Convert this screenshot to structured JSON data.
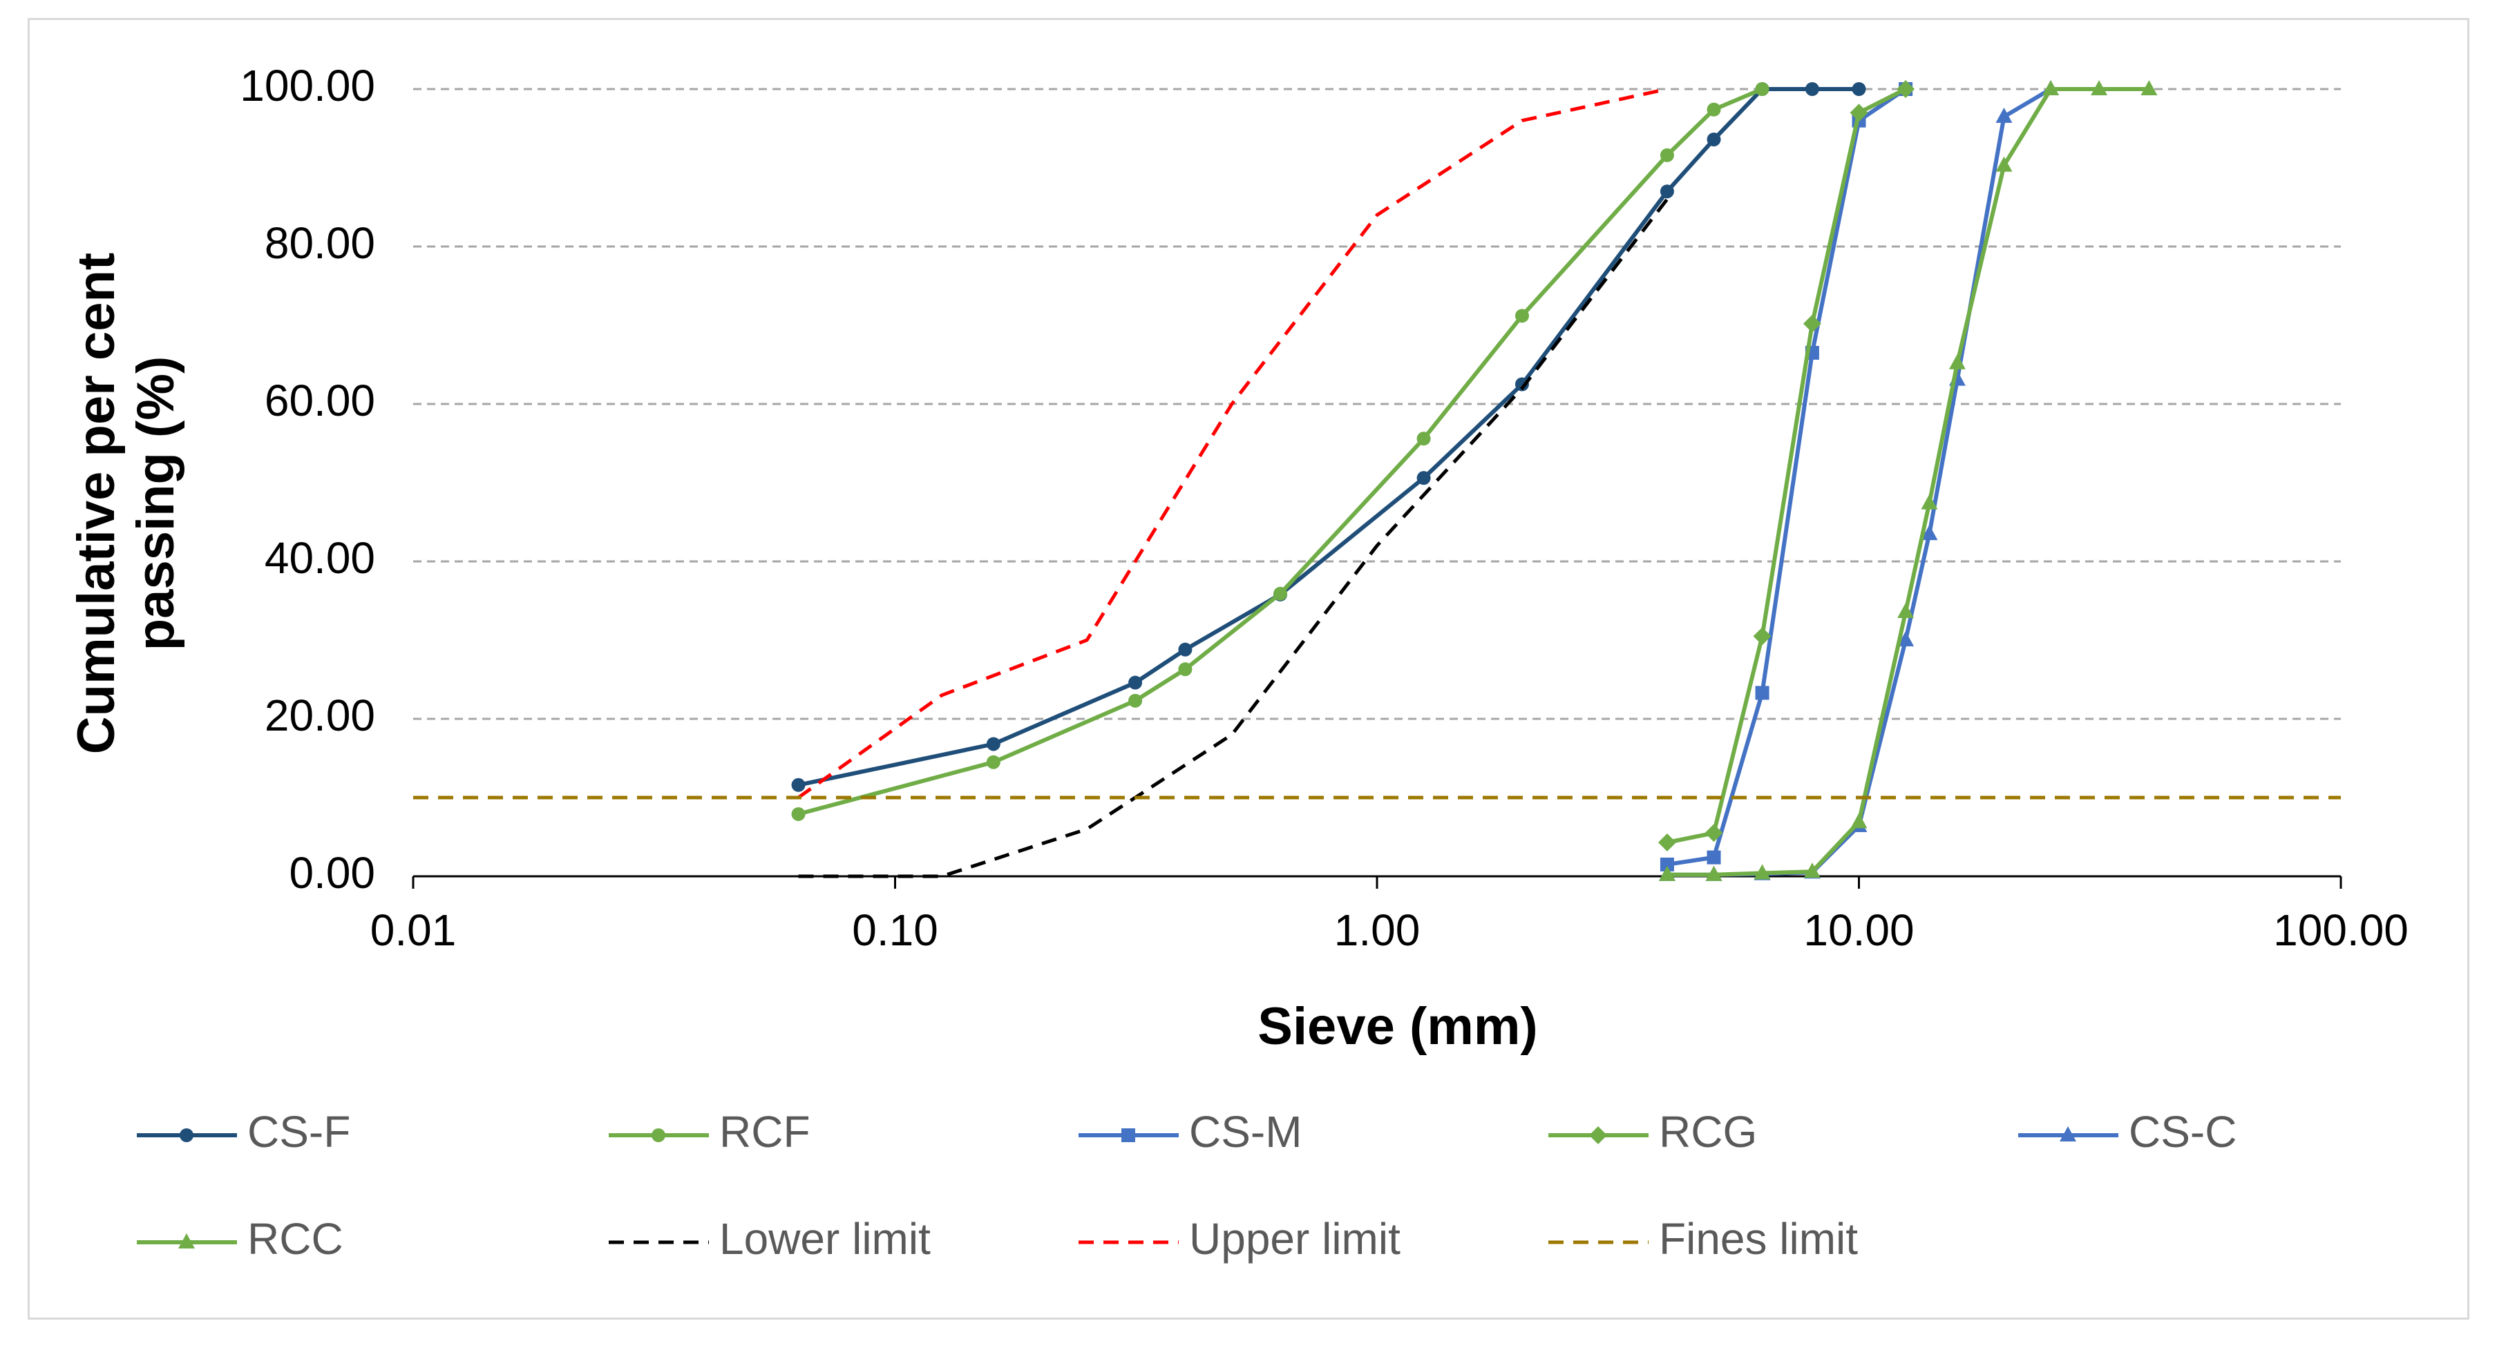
{
  "chart_data": {
    "type": "line",
    "title": "",
    "xlabel": "Sieve (mm)",
    "ylabel_lines": [
      "Cumulative per cent",
      "passing (%)"
    ],
    "x_scale": "log",
    "xlim": [
      0.01,
      100
    ],
    "ylim": [
      0,
      100
    ],
    "x_ticks": [
      0.01,
      0.1,
      1,
      10,
      100
    ],
    "x_tick_labels": [
      "0.01",
      "0.10",
      "1.00",
      "10.00",
      "100.00"
    ],
    "y_ticks": [
      0,
      20,
      40,
      60,
      80,
      100
    ],
    "y_tick_labels": [
      "0.00",
      "20.00",
      "40.00",
      "60.00",
      "80.00",
      "100.00"
    ],
    "grid": "horizontal dashed",
    "legend_position": "bottom",
    "series": [
      {
        "name": "CS-F",
        "color": "#1f4e79",
        "marker": "circle",
        "dash": "solid",
        "x": [
          0.063,
          0.16,
          0.315,
          0.4,
          0.63,
          1.25,
          2.0,
          4.0,
          5.0,
          6.3,
          8.0,
          10.0
        ],
        "y": [
          11.6,
          16.8,
          24.6,
          28.8,
          35.8,
          50.6,
          62.5,
          87.0,
          93.6,
          100.0,
          100.0,
          100.0
        ]
      },
      {
        "name": "RCF",
        "color": "#70ad47",
        "marker": "circle",
        "dash": "solid",
        "x": [
          0.063,
          0.16,
          0.315,
          0.4,
          0.63,
          1.25,
          2.0,
          4.0,
          5.0,
          6.3
        ],
        "y": [
          7.9,
          14.5,
          22.3,
          26.3,
          35.9,
          55.6,
          71.2,
          91.6,
          97.4,
          100.0
        ]
      },
      {
        "name": "CS-M",
        "color": "#4472c4",
        "marker": "square",
        "dash": "solid",
        "x": [
          4.0,
          5.0,
          6.3,
          8.0,
          10.0,
          12.5
        ],
        "y": [
          1.5,
          2.4,
          23.3,
          66.5,
          96.0,
          100.0
        ]
      },
      {
        "name": "RCG",
        "color": "#70ad47",
        "marker": "diamond",
        "dash": "solid",
        "x": [
          4.0,
          5.0,
          6.3,
          8.0,
          10.0,
          12.5
        ],
        "y": [
          4.3,
          5.5,
          30.5,
          70.2,
          97.0,
          100.0
        ]
      },
      {
        "name": "CS-C",
        "color": "#4472c4",
        "marker": "triangle",
        "dash": "solid",
        "x": [
          4.0,
          5.0,
          6.3,
          8.0,
          10.0,
          12.5,
          14.0,
          16.0,
          20.0,
          25.0
        ],
        "y": [
          0.2,
          0.2,
          0.3,
          0.5,
          6.4,
          30.0,
          43.5,
          63.1,
          96.5,
          100.0
        ]
      },
      {
        "name": "RCC",
        "color": "#70ad47",
        "marker": "triangle",
        "dash": "solid",
        "x": [
          4.0,
          5.0,
          6.3,
          8.0,
          10.0,
          12.5,
          14.0,
          16.0,
          20.0,
          25.0,
          31.5,
          40.0
        ],
        "y": [
          0.2,
          0.2,
          0.4,
          0.6,
          6.9,
          33.6,
          47.4,
          65.2,
          90.3,
          100.0,
          100.0,
          100.0
        ]
      },
      {
        "name": "Lower limit",
        "color": "#000000",
        "marker": "none",
        "dash": "dashed",
        "x": [
          0.063,
          0.125,
          0.25,
          0.315,
          0.5,
          1.0,
          2.0,
          4.0
        ],
        "y": [
          0,
          0,
          6,
          10,
          18,
          42,
          62,
          86
        ]
      },
      {
        "name": "Upper limit",
        "color": "#ff0000",
        "marker": "none",
        "dash": "dashed",
        "x": [
          0.063,
          0.125,
          0.25,
          0.315,
          0.5,
          1.0,
          2.0,
          4.0
        ],
        "y": [
          10,
          23,
          30,
          40,
          60,
          84,
          96,
          100
        ]
      },
      {
        "name": "Fines limit",
        "color": "#9c7800",
        "marker": "none",
        "dash": "dashed",
        "x": [
          0.01,
          100
        ],
        "y": [
          10,
          10
        ]
      }
    ]
  }
}
